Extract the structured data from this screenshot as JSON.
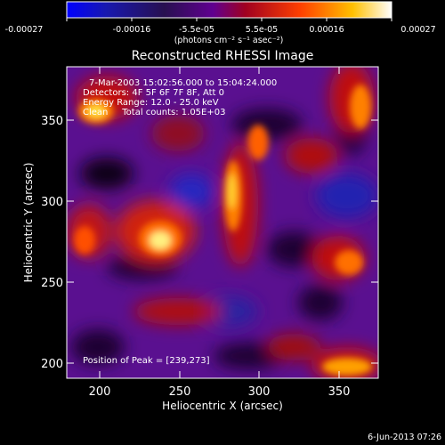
{
  "colorbar": {
    "ticks": [
      "-0.00027",
      "-0.00016",
      "-5.5e-05",
      "5.5e-05",
      "0.00016",
      "0.00027"
    ],
    "unit_label": "(photons cm⁻² s⁻¹ asec⁻²)",
    "colors": [
      "#0000ff",
      "#1010a0",
      "#302060",
      "#702090",
      "#b01010",
      "#ff6000",
      "#ffd000",
      "#ffffff"
    ]
  },
  "image": {
    "title": "Reconstructed RHESSI Image",
    "time_range": "7-Mar-2003 15:02:56.000 to 15:04:24.000",
    "detectors": "Detectors: 4F 5F 6F 7F 8F, Att 0",
    "energy": "Energy Range: 12.0 - 25.0 keV",
    "clean": "Clean     Total counts: 1.05E+03",
    "peak": "Position of Peak = [239,273]",
    "x_label": "Heliocentric X (arcsec)",
    "y_label": "Heliocentric Y (arcsec)",
    "x_ticks": [
      "200",
      "250",
      "300",
      "350"
    ],
    "y_ticks": [
      "200",
      "250",
      "300",
      "350"
    ],
    "x_range": [
      180,
      370
    ],
    "y_range": [
      190,
      380
    ],
    "date_stamp": "6-Jun-2013 07:26"
  }
}
